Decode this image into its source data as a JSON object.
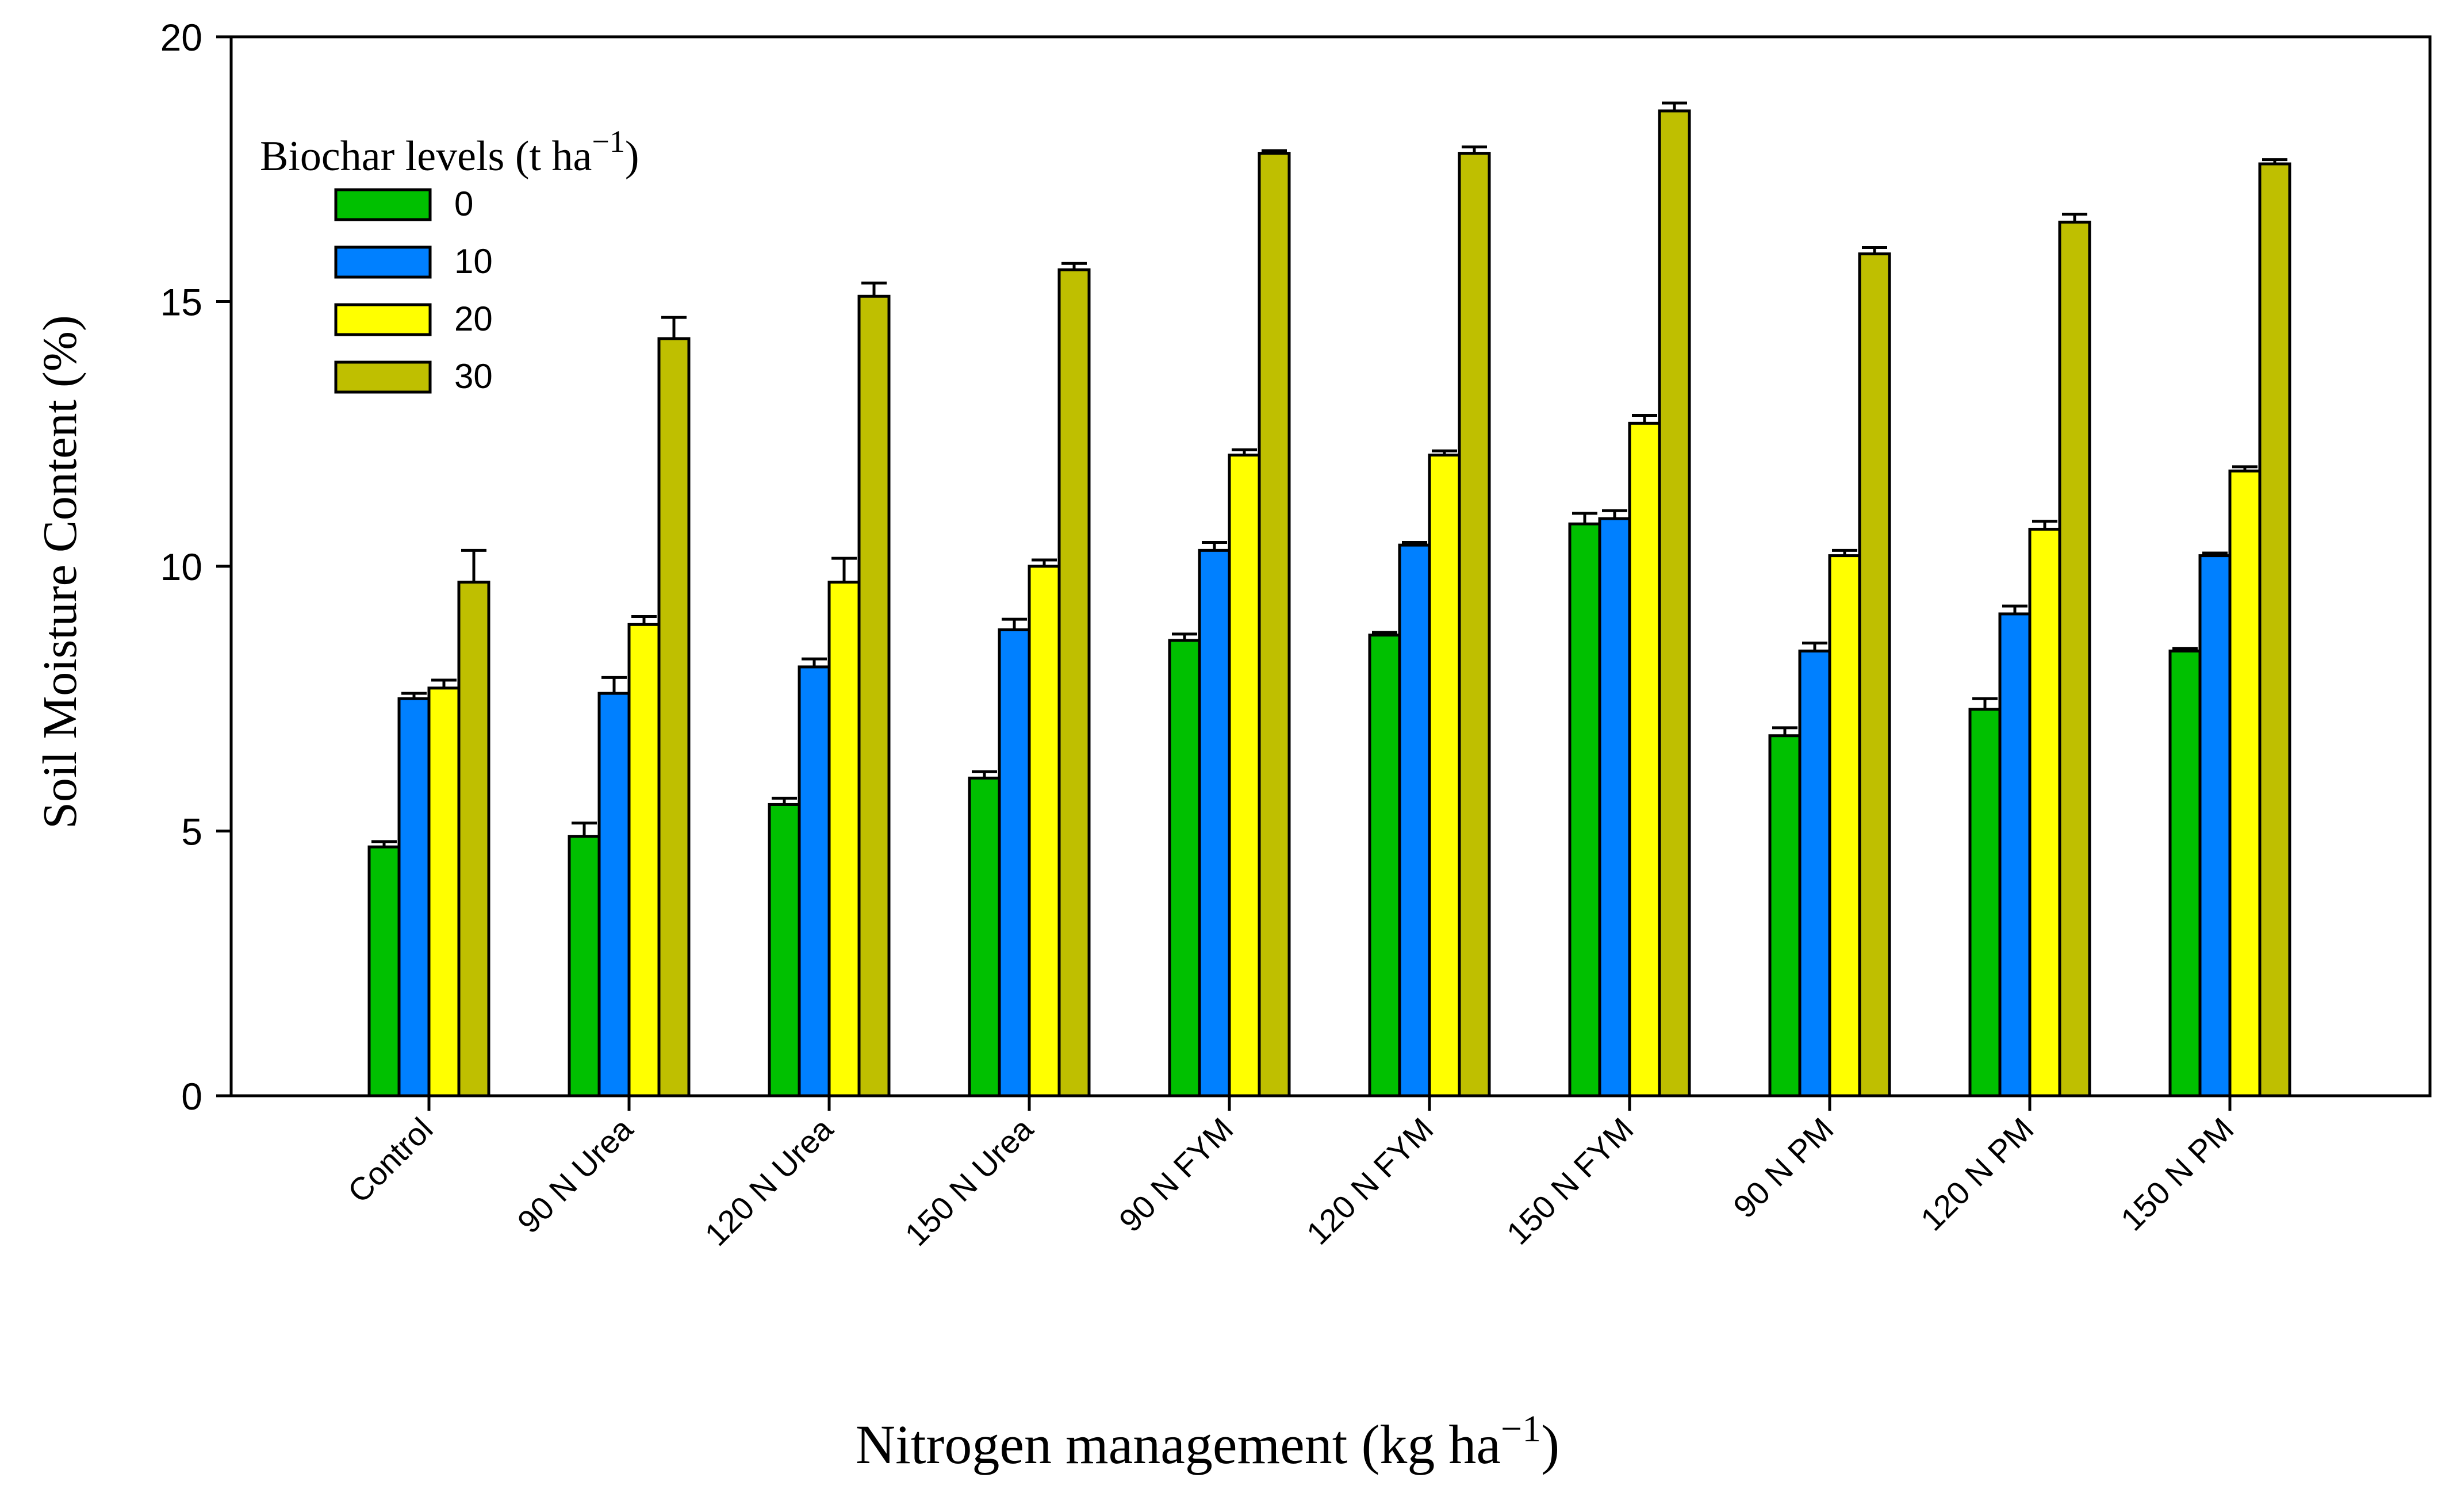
{
  "chart_data": {
    "type": "bar",
    "ylabel": "Soil Moisture Content (%)",
    "xlabel": "Nitrogen management (kg ha",
    "xlabel_sup": "−1",
    "xlabel_close": ")",
    "ylim": [
      0,
      20
    ],
    "yticks": [
      0,
      5,
      10,
      15,
      20
    ],
    "categories": [
      "Control",
      "90 N Urea",
      "120 N Urea",
      "150 N Urea",
      "90 N FYM",
      "120 N FYM",
      "150 N FYM",
      "90 N PM",
      "120 N PM",
      "150 N PM"
    ],
    "legend": {
      "title": "Biochar levels (t ha",
      "title_sup": "−1",
      "title_close": ")",
      "position": "top-left"
    },
    "series": [
      {
        "name": "0",
        "color": "#00c000",
        "values": [
          4.7,
          4.9,
          5.5,
          6.0,
          8.6,
          8.7,
          10.8,
          6.8,
          7.3,
          8.4
        ],
        "errors": [
          0.1,
          0.25,
          0.12,
          0.12,
          0.12,
          0.05,
          0.2,
          0.15,
          0.2,
          0.05
        ]
      },
      {
        "name": "10",
        "color": "#0080ff",
        "values": [
          7.5,
          7.6,
          8.1,
          8.8,
          10.3,
          10.4,
          10.9,
          8.4,
          9.1,
          10.2
        ],
        "errors": [
          0.1,
          0.3,
          0.15,
          0.2,
          0.15,
          0.05,
          0.15,
          0.15,
          0.15,
          0.05
        ]
      },
      {
        "name": "20",
        "color": "#ffff00",
        "values": [
          7.7,
          8.9,
          9.7,
          10.0,
          12.1,
          12.1,
          12.7,
          10.2,
          10.7,
          11.8
        ],
        "errors": [
          0.15,
          0.15,
          0.45,
          0.12,
          0.1,
          0.08,
          0.15,
          0.1,
          0.15,
          0.08
        ]
      },
      {
        "name": "30",
        "color": "#bfbf00",
        "values": [
          9.7,
          14.3,
          15.1,
          15.6,
          17.8,
          17.8,
          18.6,
          15.9,
          16.5,
          17.6
        ],
        "errors": [
          0.6,
          0.4,
          0.25,
          0.12,
          0.05,
          0.12,
          0.15,
          0.12,
          0.15,
          0.08
        ]
      }
    ]
  }
}
